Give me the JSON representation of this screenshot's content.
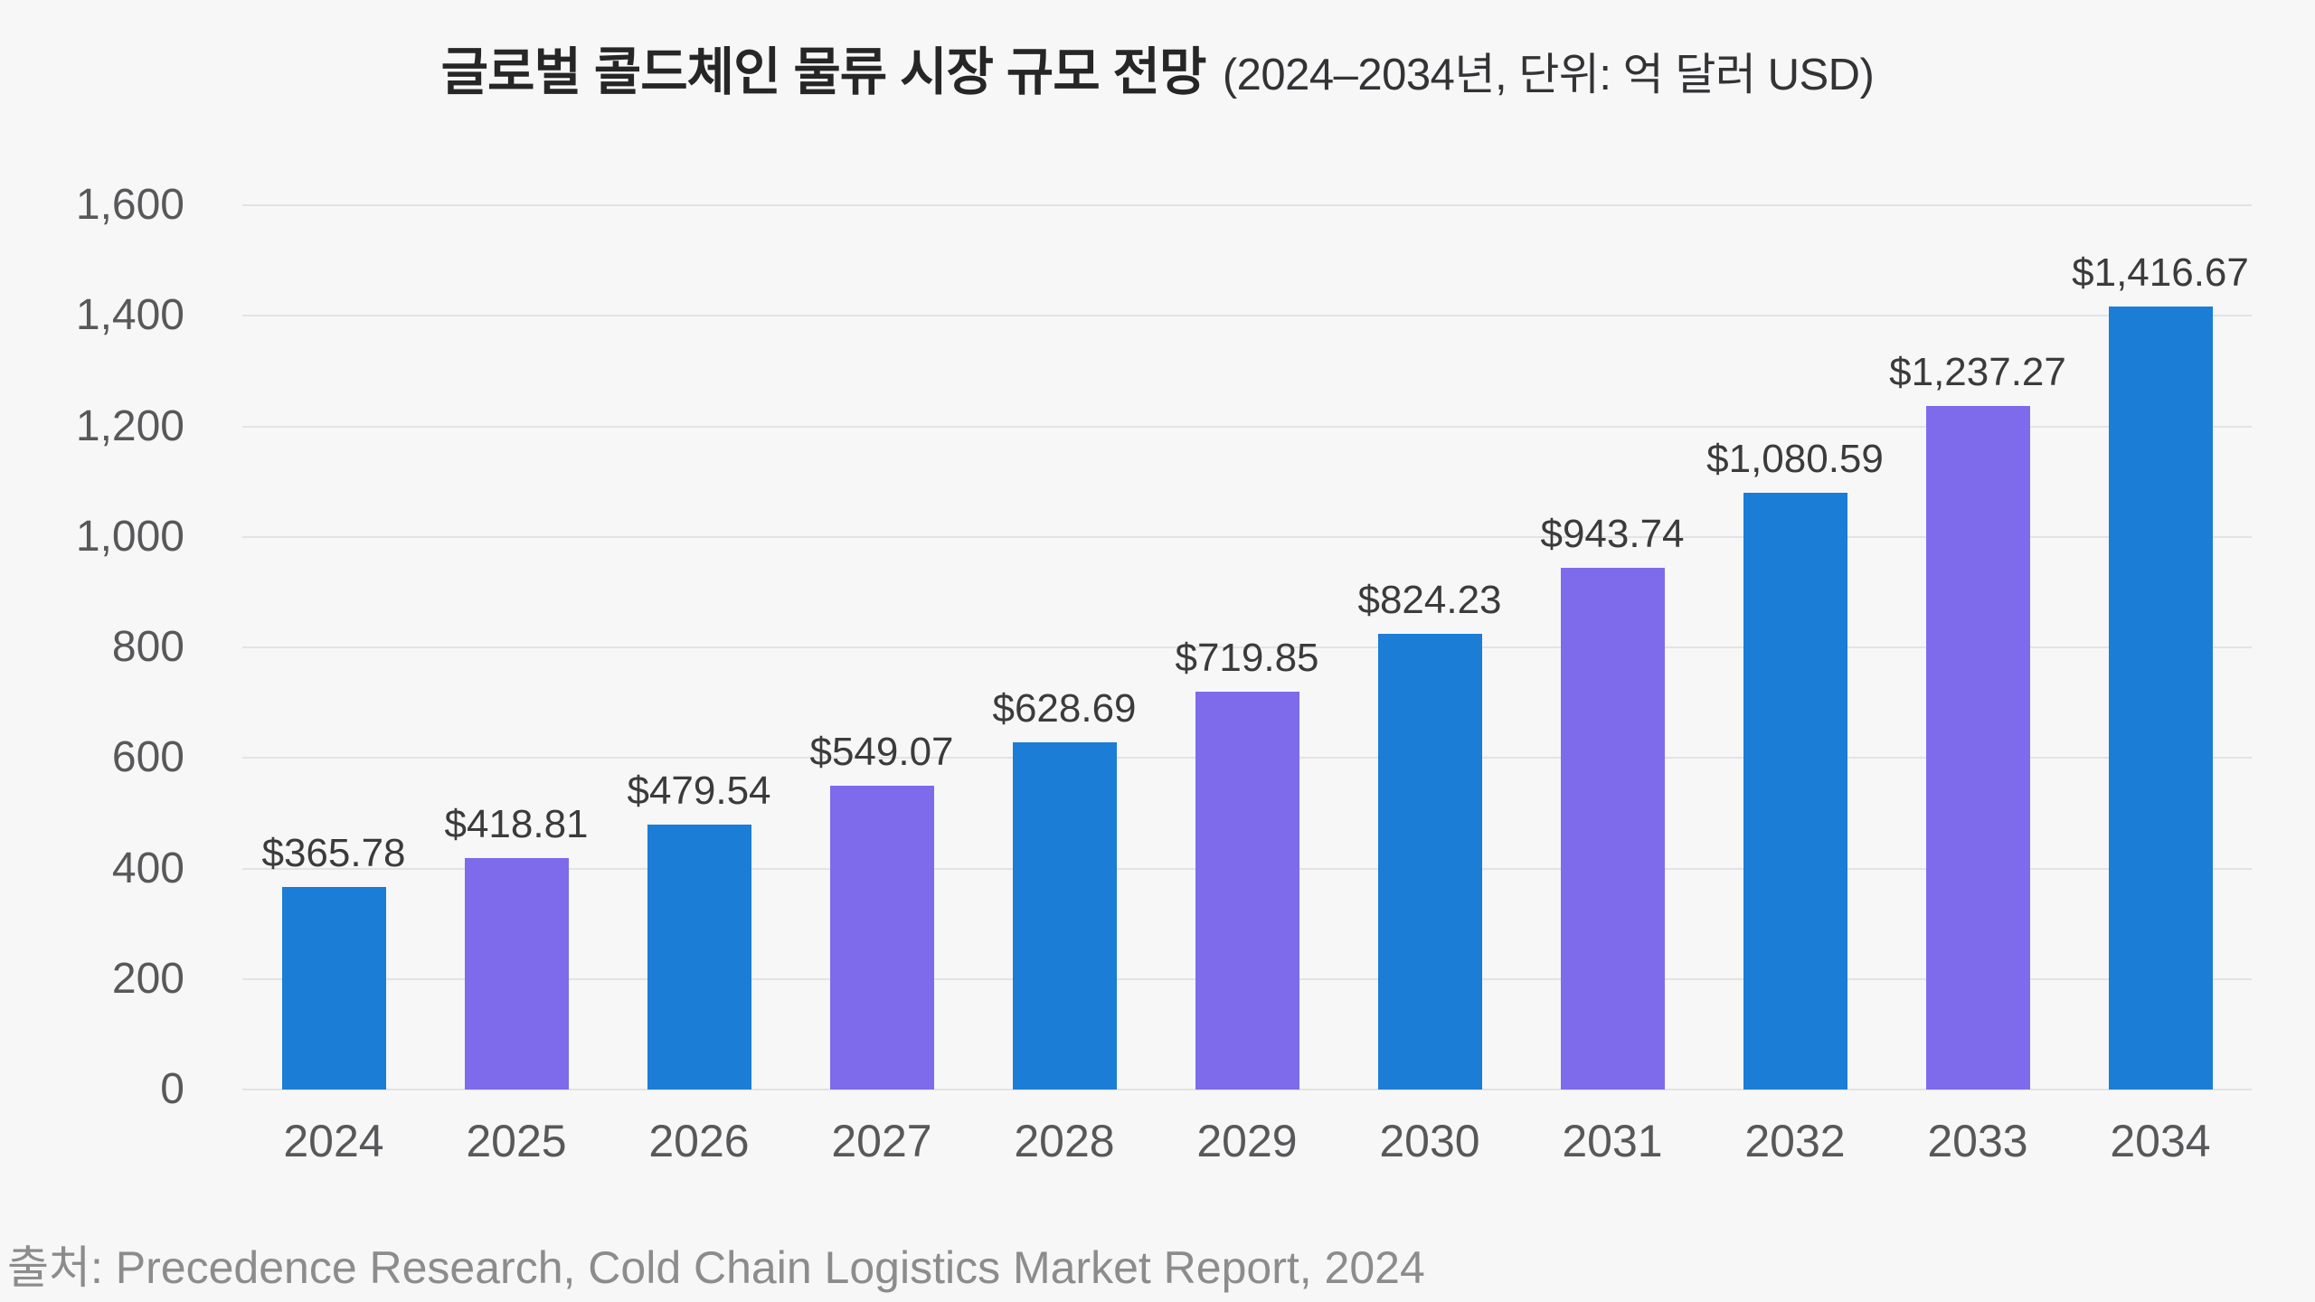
{
  "title": {
    "main": "글로벌 콜드체인 물류 시장 규모 전망",
    "sub": "(2024–2034년, 단위: 억 달러 USD)"
  },
  "source_note": "출처: Precedence Research, Cold Chain Logistics Market Report, 2024",
  "chart_data": {
    "type": "bar",
    "title": "글로벌 콜드체인 물류 시장 규모 전망 (2024–2034년, 단위: 억 달러 USD)",
    "unit": "억 달러 USD",
    "categories": [
      "2024",
      "2025",
      "2026",
      "2027",
      "2028",
      "2029",
      "2030",
      "2031",
      "2032",
      "2033",
      "2034"
    ],
    "values": [
      365.78,
      418.81,
      479.54,
      549.07,
      628.69,
      719.85,
      824.23,
      943.74,
      1080.59,
      1237.27,
      1416.67
    ],
    "value_labels": [
      "$365.78",
      "$418.81",
      "$479.54",
      "$549.07",
      "$628.69",
      "$719.85",
      "$824.23",
      "$943.74",
      "$1,080.59",
      "$1,237.27",
      "$1,416.67"
    ],
    "ylim": [
      0,
      1600
    ],
    "ytick_step": 200,
    "ytick_labels": [
      "0",
      "200",
      "400",
      "600",
      "800",
      "1,000",
      "1,200",
      "1,400",
      "1,600"
    ],
    "grid": true,
    "legend": "none",
    "bar_color_even": "#1B7DD6",
    "bar_color_odd": "#7D6BEC"
  },
  "colors": {
    "background": "#F7F7F8",
    "gridline": "#E3E3E5",
    "title_text": "#262626",
    "subtitle_text": "#333336",
    "axis_text": "#58585A",
    "value_label_text": "#3B3B3B",
    "source_text": "#8C8C8C"
  }
}
